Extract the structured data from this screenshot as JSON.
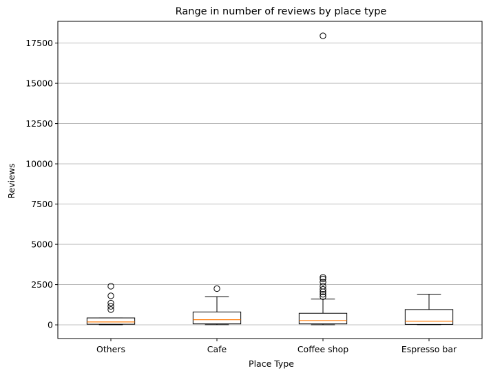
{
  "chart_data": {
    "type": "box",
    "title": "Range in number of reviews by place type",
    "xlabel": "Place Type",
    "ylabel": "Reviews",
    "ylim": [
      -850,
      18850
    ],
    "yticks": [
      0,
      2500,
      5000,
      7500,
      10000,
      12500,
      15000,
      17500
    ],
    "yticklabels": [
      "0",
      "2500",
      "5000",
      "7500",
      "10000",
      "12500",
      "15000",
      "17500"
    ],
    "grid": "y",
    "categories": [
      "Others",
      "Cafe",
      "Coffee shop",
      "Espresso bar"
    ],
    "boxes": [
      {
        "category": "Others",
        "whisker_low": 5,
        "q1": 40,
        "median": 180,
        "q3": 430,
        "whisker_high": 430,
        "outliers": [
          950,
          1150,
          1350,
          1800,
          2400
        ]
      },
      {
        "category": "Cafe",
        "whisker_low": 10,
        "q1": 60,
        "median": 320,
        "q3": 800,
        "whisker_high": 1750,
        "outliers": [
          2250
        ]
      },
      {
        "category": "Coffee shop",
        "whisker_low": 5,
        "q1": 60,
        "median": 270,
        "q3": 720,
        "whisker_high": 1600,
        "outliers": [
          1750,
          1900,
          2050,
          2200,
          2400,
          2650,
          2850,
          2950,
          17950
        ]
      },
      {
        "category": "Espresso bar",
        "whisker_low": 10,
        "q1": 30,
        "median": 220,
        "q3": 950,
        "whisker_high": 1900,
        "outliers": []
      }
    ],
    "colors": {
      "box": "#000000",
      "median": "#ff7f0e",
      "grid": "#b0b0b0",
      "outlier": "#000000"
    }
  }
}
